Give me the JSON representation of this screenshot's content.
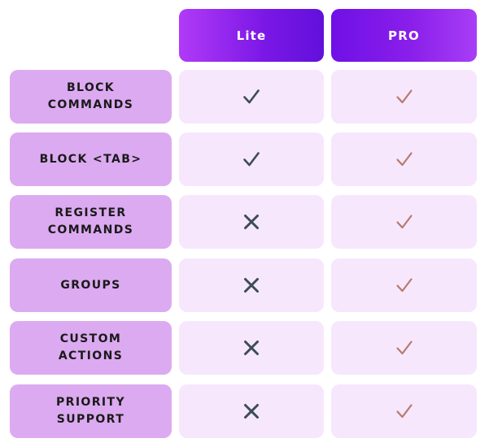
{
  "header": {
    "lite_label": "Lite",
    "pro_label": "PRO"
  },
  "colors": {
    "feature_bg": "#dcaaf0",
    "value_bg": "#f6e7fd",
    "lite_check": "#3d4b57",
    "lite_cross": "#3d4b57",
    "pro_check": "#b87a6d"
  },
  "rows": [
    {
      "label": "BLOCK\nCOMMANDS",
      "lite": "check-icon",
      "pro": "check-icon"
    },
    {
      "label": "BLOCK <TAB>",
      "lite": "check-icon",
      "pro": "check-icon"
    },
    {
      "label": "REGISTER\nCOMMANDS",
      "lite": "cross-icon",
      "pro": "check-icon"
    },
    {
      "label": "GROUPS",
      "lite": "cross-icon",
      "pro": "check-icon"
    },
    {
      "label": "CUSTOM\nACTIONS",
      "lite": "cross-icon",
      "pro": "check-icon"
    },
    {
      "label": "PRIORITY\nSUPPORT",
      "lite": "cross-icon",
      "pro": "check-icon"
    }
  ]
}
